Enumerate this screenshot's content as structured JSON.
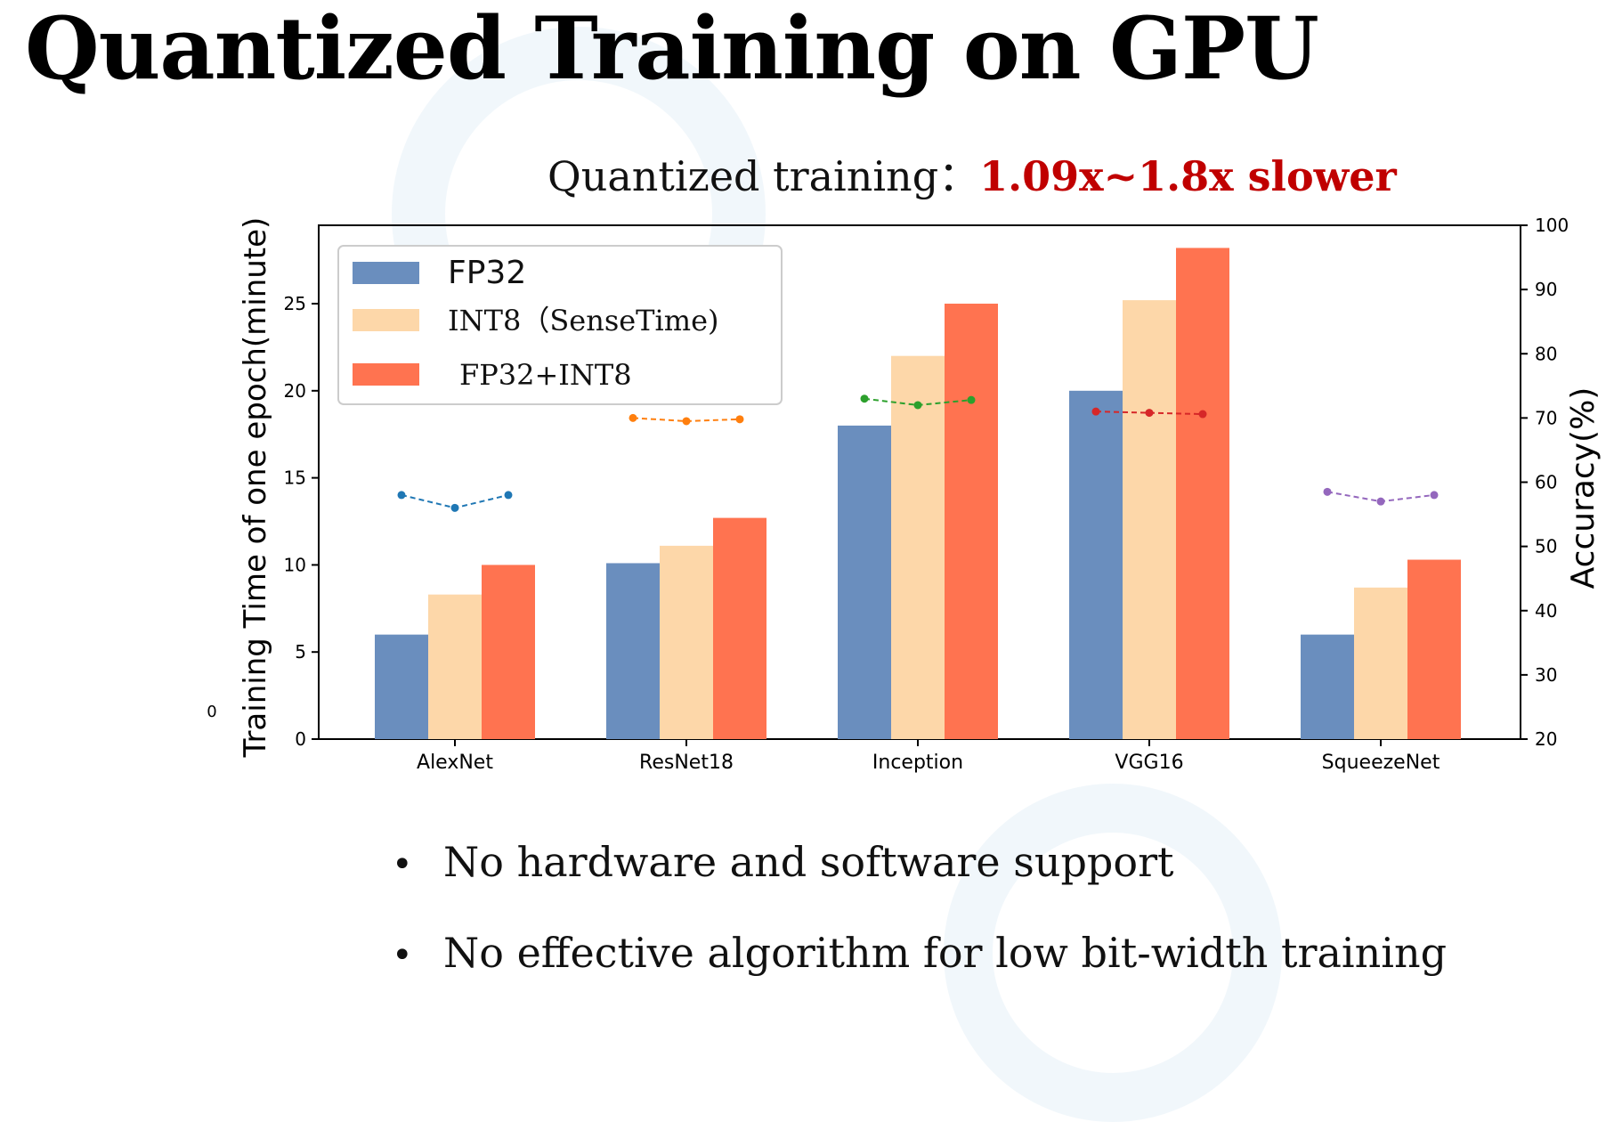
{
  "slide": {
    "title": "Quantized Training on GPU",
    "subtitle_prefix": "Quantized training：",
    "subtitle_highlight": "1.09x~1.8x slower",
    "bullets": [
      "No hardware and software support",
      "No effective algorithm for low bit-width training"
    ],
    "stray_label": "0"
  },
  "colors": {
    "fp32": "#6a8ebe",
    "int8": "#fdd7a9",
    "fp32_int8": "#ff7350",
    "highlight": "#c00000"
  },
  "chart_data": {
    "type": "bar",
    "title": "",
    "ylabel": "Training Time of one epoch(minute)",
    "y2label": "Accuracy(%)",
    "ylim": [
      0,
      29.5
    ],
    "y2lim": [
      20,
      100
    ],
    "yticks": [
      0,
      5,
      10,
      15,
      20,
      25
    ],
    "y2ticks": [
      20,
      30,
      40,
      50,
      60,
      70,
      80,
      90,
      100
    ],
    "categories": [
      "AlexNet",
      "ResNet18",
      "Inception",
      "VGG16",
      "SqueezeNet"
    ],
    "legend_position": "top-left",
    "series": [
      {
        "name": "FP32",
        "color_key": "fp32",
        "values": [
          6.0,
          10.1,
          18.0,
          20.0,
          6.0
        ]
      },
      {
        "name": "INT8（SenseTime)",
        "color_key": "int8",
        "values": [
          8.3,
          11.1,
          22.0,
          25.2,
          8.7
        ]
      },
      {
        "name": "FP32+INT8",
        "color_key": "fp32_int8",
        "values": [
          10.0,
          12.7,
          25.0,
          28.2,
          10.3
        ]
      }
    ],
    "accuracy_lines": [
      {
        "category": "AlexNet",
        "color": "#1f77b4",
        "values": [
          58.0,
          56.0,
          58.0
        ]
      },
      {
        "category": "ResNet18",
        "color": "#ff7f0e",
        "values": [
          70.0,
          69.5,
          69.8
        ]
      },
      {
        "category": "Inception",
        "color": "#2ca02c",
        "values": [
          73.0,
          72.0,
          72.8
        ]
      },
      {
        "category": "VGG16",
        "color": "#d62728",
        "values": [
          71.0,
          70.8,
          70.6
        ]
      },
      {
        "category": "SqueezeNet",
        "color": "#9467bd",
        "values": [
          58.5,
          57.0,
          58.0
        ]
      }
    ]
  }
}
